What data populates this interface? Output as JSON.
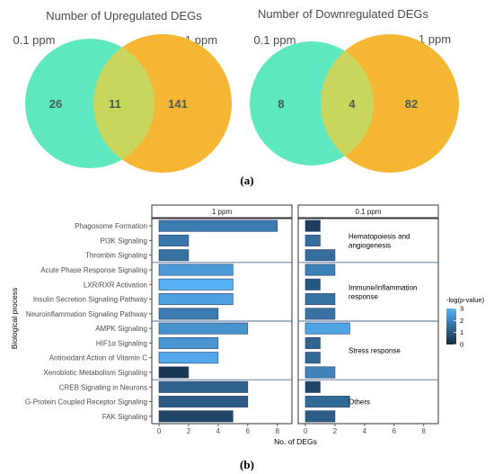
{
  "panel_a": {
    "label": "(a)",
    "venns": [
      {
        "title": "Number of Upregulated DEGs",
        "left_label": "0.1 ppm",
        "right_label": "1 ppm",
        "left_only": "26",
        "overlap": "11",
        "right_only": "141"
      },
      {
        "title": "Number of Downregulated DEGs",
        "left_label": "0.1 ppm",
        "right_label": "1 ppm",
        "left_only": "8",
        "overlap": "4",
        "right_only": "82"
      }
    ],
    "colors": {
      "left": "#5ee8c0",
      "right": "#f5b733",
      "overlap": "#c9d65e"
    }
  },
  "panel_b": {
    "label": "(b)",
    "ylabel": "Biological process",
    "xlabel": "No. of DEGs",
    "legend_title": "-log(p-value)",
    "legend_ticks": [
      "3",
      "2",
      "1",
      "0"
    ]
  },
  "chart_data": {
    "type": "bar",
    "orientation": "horizontal",
    "title": "",
    "xlabel": "No. of DEGs",
    "ylabel": "Biological process",
    "xlim": [
      0,
      8.5
    ],
    "xticks": [
      0,
      2,
      4,
      6,
      8
    ],
    "facets": [
      "1 ppm",
      "0.1 ppm"
    ],
    "categories": [
      "Phagosome Formation",
      "PI3K Signaling",
      "Thrombin Signaling",
      "Acute Phase Response Signaling",
      "LXR/RXR Activation",
      "Insulin Secretion Signaling Pathway",
      "Neuroinflammation Signaling Pathway",
      "AMPK Signaling",
      "HIF1α Signaling",
      "Antioxidant Action of Vitamin C",
      "Xenobiotic Metabolism Signaling",
      "CREB Signaling in Neurons",
      "G-Protein Coupled Receptor Signaling",
      "FAK Signaling"
    ],
    "series": [
      {
        "name": "1 ppm",
        "values": [
          8,
          2,
          2,
          5,
          5,
          5,
          4,
          6,
          4,
          4,
          2,
          6,
          6,
          5
        ],
        "neg_log_p": [
          1.8,
          1.7,
          1.6,
          2.5,
          3.0,
          2.6,
          1.8,
          2.3,
          2.4,
          2.8,
          0.3,
          1.2,
          1.1,
          0.6
        ]
      },
      {
        "name": "0.1 ppm",
        "values": [
          1,
          1,
          2,
          2,
          1,
          2,
          2,
          3,
          1,
          1,
          2,
          1,
          3,
          2
        ],
        "neg_log_p": [
          0.4,
          1.5,
          1.5,
          1.9,
          1.0,
          1.6,
          1.6,
          2.7,
          1.3,
          1.4,
          2.0,
          0.6,
          1.4,
          1.1
        ]
      }
    ],
    "groups": [
      {
        "name": "Hematopoiesis and angiogenesis",
        "lines": [
          "Hematopoiesis and",
          "angiogenesis"
        ],
        "rows": [
          0,
          2
        ]
      },
      {
        "name": "Immune/inflammation response",
        "lines": [
          "Immune/inflammation",
          "response"
        ],
        "rows": [
          3,
          6
        ]
      },
      {
        "name": "Stress response",
        "lines": [
          "Stress response"
        ],
        "rows": [
          7,
          10
        ]
      },
      {
        "name": "Others",
        "lines": [
          "Others"
        ],
        "rows": [
          11,
          13
        ]
      }
    ],
    "colorbar": {
      "label": "-log(p-value)",
      "range": [
        0,
        3
      ],
      "low": "#132b43",
      "high": "#56b1f7"
    },
    "grid": false,
    "legend": "right"
  }
}
